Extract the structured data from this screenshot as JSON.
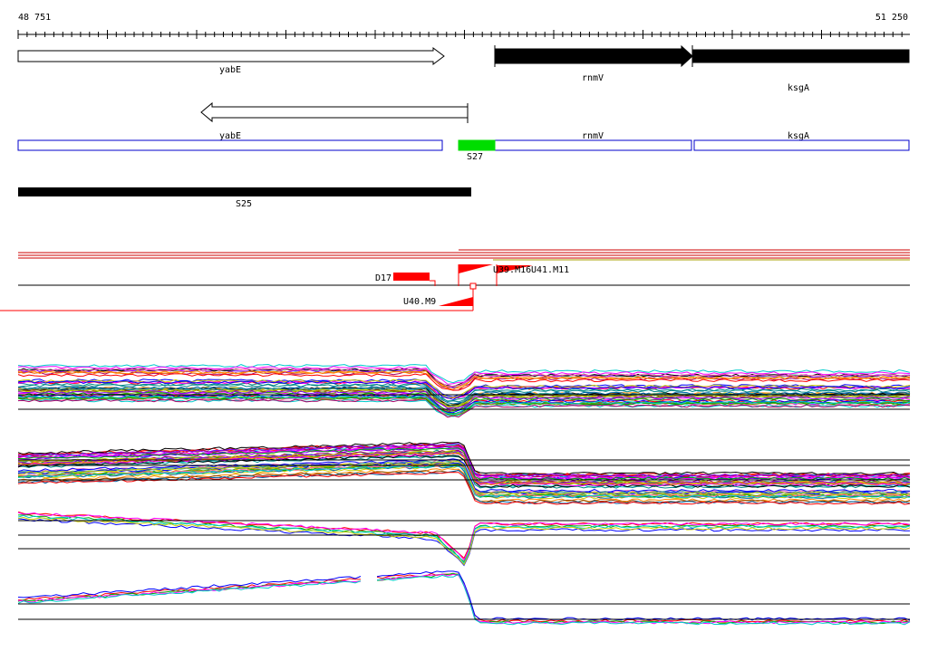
{
  "ruler": {
    "start_label": "48 751",
    "end_label": "51 250",
    "start": 48751,
    "end": 51250
  },
  "genes_top": [
    {
      "name": "yabE",
      "strand": "+",
      "style": "outline"
    },
    {
      "name": "rnmV",
      "strand": "+",
      "style": "filled"
    },
    {
      "name": "ksgA",
      "strand": "+",
      "style": "filled"
    },
    {
      "name": "",
      "strand": "-",
      "style": "outline"
    }
  ],
  "gene_boxes": [
    {
      "name": "yabE",
      "color": "#0000cc"
    },
    {
      "name": "rnmV",
      "color": "#0000cc"
    },
    {
      "name": "ksgA",
      "color": "#0000cc"
    },
    {
      "name": "S27",
      "color": "#00dd00"
    }
  ],
  "segments": [
    {
      "name": "S25",
      "color": "#000000"
    }
  ],
  "features": [
    {
      "name": "D17",
      "color": "#ff0000"
    },
    {
      "name": "U40.M9",
      "color": "#ff0000"
    },
    {
      "name": "U39.M16",
      "color": "#ff0000"
    },
    {
      "name": "U41.M11",
      "color": "#ff0000"
    }
  ],
  "colors": {
    "accent": "#ff0000",
    "gene_outline": "#0000cc",
    "s27": "#00dd00"
  }
}
